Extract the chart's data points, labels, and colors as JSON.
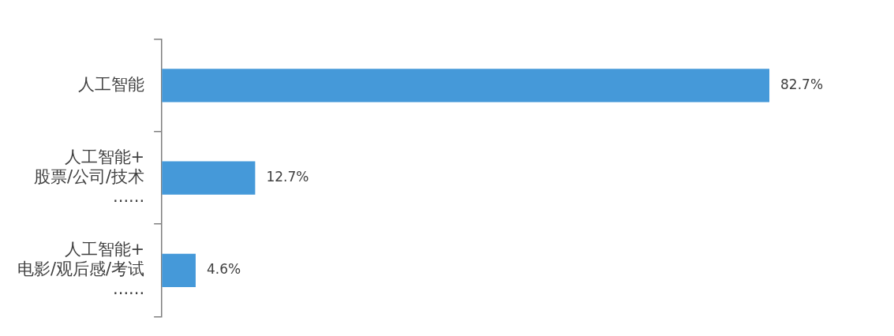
{
  "chart_data": {
    "type": "bar",
    "orientation": "horizontal",
    "categories": [
      "人工智能",
      "人工智能+\n股票/公司/技术\n......",
      "人工智能+\n电影/观后感/考试\n......"
    ],
    "values": [
      82.7,
      12.7,
      4.6
    ],
    "value_labels": [
      "82.7%",
      "12.7%",
      "4.6%"
    ],
    "color": "#4599d9",
    "tick_labels": "y",
    "grid": false,
    "legend": false
  }
}
